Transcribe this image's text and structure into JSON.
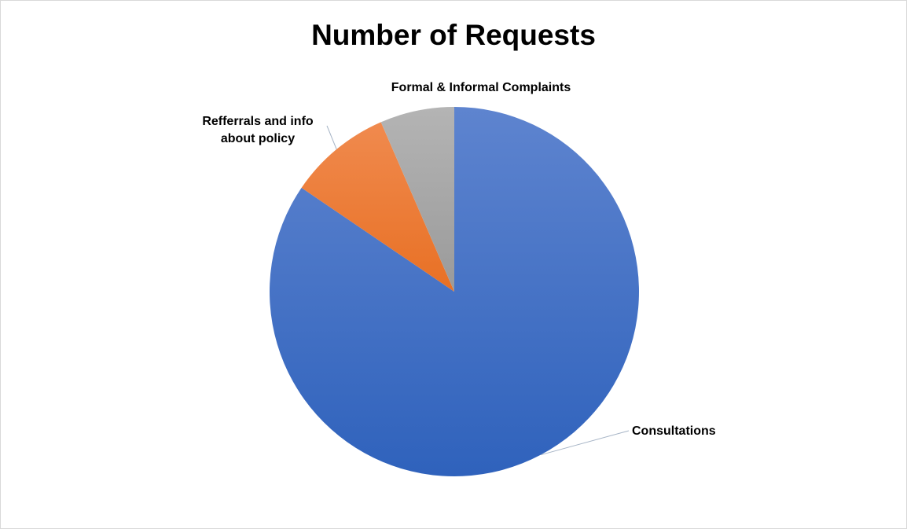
{
  "chart_data": {
    "type": "pie",
    "title": "Number of Requests",
    "categories": [
      "Consultations",
      "Refferrals and info about policy",
      "Formal & Informal Complaints"
    ],
    "values": [
      84.5,
      9.0,
      6.5
    ],
    "value_unit": "percent of total (estimated)",
    "colors": [
      "#4472c4",
      "#ed7d31",
      "#a5a5a5"
    ],
    "start_angle": "12 o'clock",
    "direction": "clockwise",
    "legend": "none",
    "labels": [
      {
        "lines": [
          "Consultations"
        ]
      },
      {
        "lines": [
          "Refferrals and info",
          "about policy"
        ]
      },
      {
        "lines": [
          "Formal & Informal Complaints"
        ]
      }
    ]
  }
}
